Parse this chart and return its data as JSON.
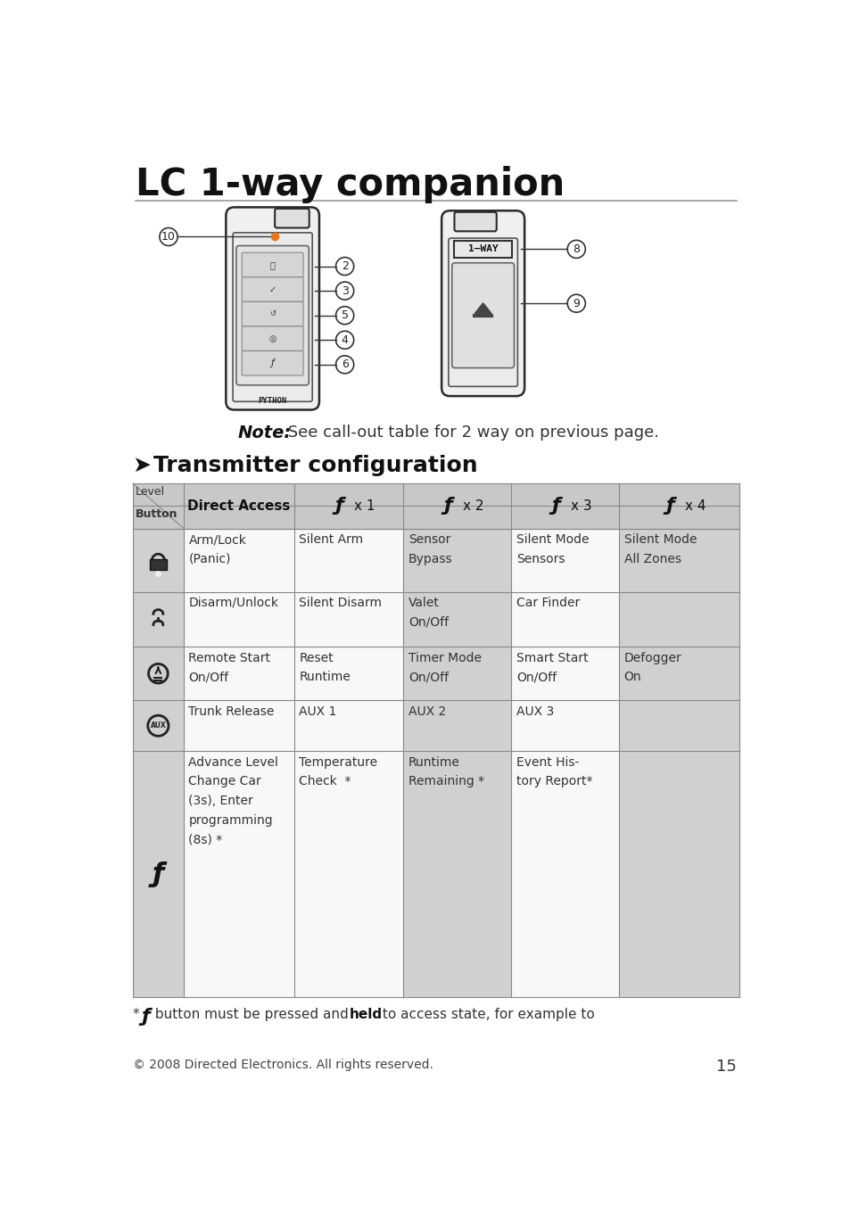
{
  "title": "LC 1-way companion",
  "bg_color": "#ffffff",
  "section_title": "➤  Transmitter configuration",
  "rows": [
    {
      "icon": "lock",
      "col1": "Arm/Lock\n(Panic)",
      "col2": "Silent Arm",
      "col3": "Sensor\nBypass",
      "col4": "Silent Mode\nSensors",
      "col5": "Silent Mode\nAll Zones"
    },
    {
      "icon": "disarm",
      "col1": "Disarm/Unlock",
      "col2": "Silent Disarm",
      "col3": "Valet\nOn/Off",
      "col4": "Car Finder",
      "col5": ""
    },
    {
      "icon": "remote",
      "col1": "Remote Start\nOn/Off",
      "col2": "Reset\nRuntime",
      "col3": "Timer Mode\nOn/Off",
      "col4": "Smart Start\nOn/Off",
      "col5": "Defogger\nOn"
    },
    {
      "icon": "aux",
      "col1": "Trunk Release",
      "col2": "AUX 1",
      "col3": "AUX 2",
      "col4": "AUX 3",
      "col5": ""
    },
    {
      "icon": "f",
      "col1": "Advance Level\nChange Car\n(3s), Enter\nprogramming\n(8s) *",
      "col2": "Temperature\nCheck  *",
      "col3": "Runtime\nRemaining *",
      "col4": "Event His-\ntory Report*",
      "col5": ""
    }
  ],
  "copyright_text": "© 2008 Directed Electronics. All rights reserved.",
  "page_number": "15",
  "header_shading": "#c8c8c8",
  "row_shading": "#d0d0d0",
  "icon_col_shading": "#d8d8d8",
  "white_col": "#f5f5f5"
}
